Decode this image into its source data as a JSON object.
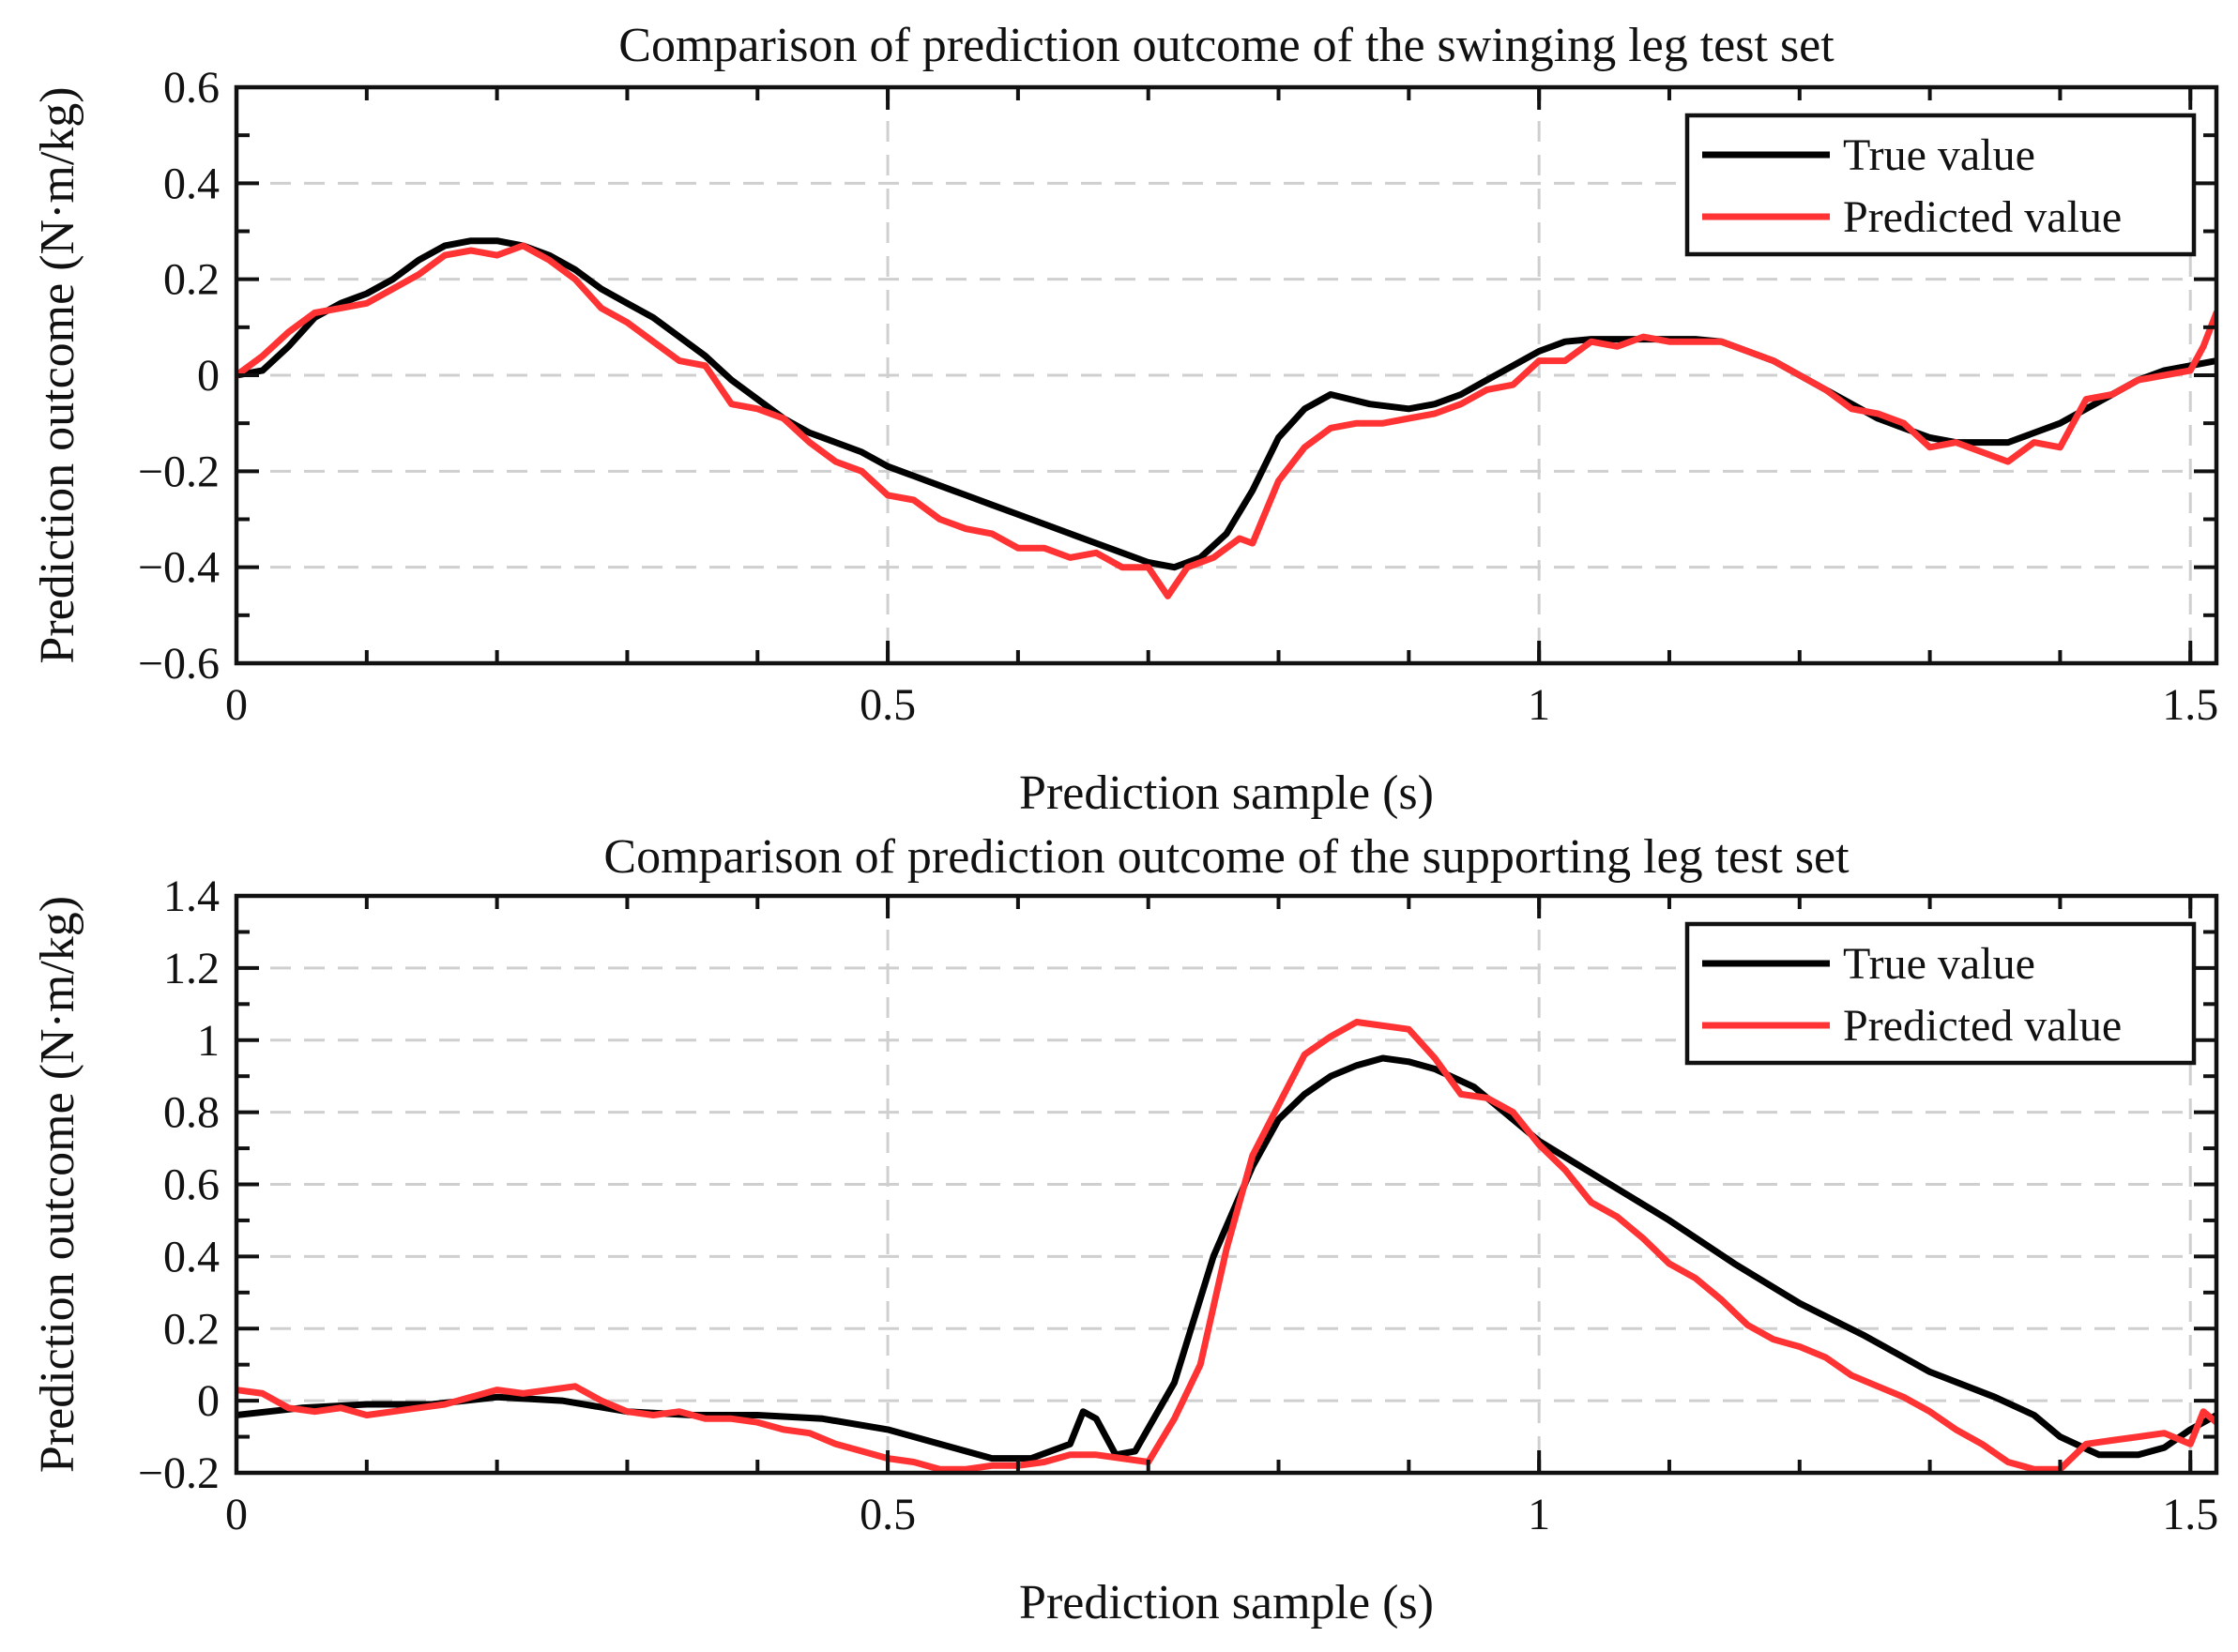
{
  "chart_data": [
    {
      "type": "line",
      "title": "Comparison of prediction outcome of the swinging leg test set",
      "xlabel": "Prediction sample (s)",
      "ylabel": "Prediction outcome (N·m/kg)",
      "xlim": [
        0,
        1.52
      ],
      "ylim": [
        -0.6,
        0.6
      ],
      "xticks": [
        0,
        0.5,
        1,
        1.5
      ],
      "xtick_labels": [
        "0",
        "0.5",
        "1",
        "1.5"
      ],
      "yticks": [
        -0.6,
        -0.4,
        -0.2,
        0,
        0.2,
        0.4,
        0.6
      ],
      "ytick_labels": [
        "−0.6",
        "−0.4",
        "−0.2",
        "0",
        "0.2",
        "0.4",
        "0.6"
      ],
      "grid": true,
      "legend_position": "top-right",
      "series": [
        {
          "name": "True value",
          "color": "#000000",
          "x": [
            0.0,
            0.02,
            0.04,
            0.06,
            0.08,
            0.1,
            0.12,
            0.14,
            0.16,
            0.18,
            0.2,
            0.22,
            0.24,
            0.26,
            0.28,
            0.3,
            0.32,
            0.34,
            0.36,
            0.38,
            0.4,
            0.42,
            0.44,
            0.46,
            0.48,
            0.5,
            0.52,
            0.54,
            0.56,
            0.58,
            0.6,
            0.62,
            0.64,
            0.66,
            0.68,
            0.7,
            0.72,
            0.74,
            0.76,
            0.78,
            0.8,
            0.82,
            0.84,
            0.855,
            0.87,
            0.9,
            0.92,
            0.94,
            0.96,
            0.98,
            1.0,
            1.02,
            1.04,
            1.06,
            1.08,
            1.1,
            1.12,
            1.14,
            1.16,
            1.18,
            1.2,
            1.22,
            1.24,
            1.26,
            1.28,
            1.3,
            1.32,
            1.34,
            1.36,
            1.38,
            1.4,
            1.42,
            1.44,
            1.46,
            1.48,
            1.5,
            1.52
          ],
          "y": [
            0.0,
            0.01,
            0.06,
            0.12,
            0.15,
            0.17,
            0.2,
            0.24,
            0.27,
            0.28,
            0.28,
            0.27,
            0.25,
            0.22,
            0.18,
            0.15,
            0.12,
            0.08,
            0.04,
            -0.01,
            -0.05,
            -0.09,
            -0.12,
            -0.14,
            -0.16,
            -0.19,
            -0.21,
            -0.23,
            -0.25,
            -0.27,
            -0.29,
            -0.31,
            -0.33,
            -0.35,
            -0.37,
            -0.39,
            -0.4,
            -0.38,
            -0.33,
            -0.24,
            -0.13,
            -0.07,
            -0.04,
            -0.05,
            -0.06,
            -0.07,
            -0.06,
            -0.04,
            -0.01,
            0.02,
            0.05,
            0.07,
            0.075,
            0.075,
            0.075,
            0.075,
            0.075,
            0.07,
            0.05,
            0.03,
            0.0,
            -0.03,
            -0.06,
            -0.09,
            -0.11,
            -0.13,
            -0.14,
            -0.14,
            -0.14,
            -0.12,
            -0.1,
            -0.07,
            -0.04,
            -0.01,
            0.01,
            0.02,
            0.03
          ]
        },
        {
          "name": "Predicted value",
          "color": "#ff3333",
          "x": [
            0.0,
            0.02,
            0.04,
            0.06,
            0.08,
            0.1,
            0.12,
            0.14,
            0.16,
            0.18,
            0.2,
            0.22,
            0.24,
            0.26,
            0.28,
            0.3,
            0.32,
            0.34,
            0.36,
            0.38,
            0.4,
            0.42,
            0.44,
            0.46,
            0.48,
            0.5,
            0.52,
            0.54,
            0.56,
            0.58,
            0.6,
            0.62,
            0.64,
            0.66,
            0.68,
            0.7,
            0.715,
            0.73,
            0.75,
            0.77,
            0.78,
            0.8,
            0.82,
            0.84,
            0.86,
            0.88,
            0.9,
            0.92,
            0.94,
            0.96,
            0.98,
            1.0,
            1.02,
            1.04,
            1.06,
            1.08,
            1.1,
            1.12,
            1.14,
            1.16,
            1.18,
            1.2,
            1.22,
            1.24,
            1.26,
            1.28,
            1.3,
            1.32,
            1.34,
            1.36,
            1.38,
            1.4,
            1.42,
            1.44,
            1.46,
            1.48,
            1.5,
            1.51,
            1.52
          ],
          "y": [
            0.0,
            0.04,
            0.09,
            0.13,
            0.14,
            0.15,
            0.18,
            0.21,
            0.25,
            0.26,
            0.25,
            0.27,
            0.24,
            0.2,
            0.14,
            0.11,
            0.07,
            0.03,
            0.02,
            -0.06,
            -0.07,
            -0.09,
            -0.14,
            -0.18,
            -0.2,
            -0.25,
            -0.26,
            -0.3,
            -0.32,
            -0.33,
            -0.36,
            -0.36,
            -0.38,
            -0.37,
            -0.4,
            -0.4,
            -0.46,
            -0.4,
            -0.38,
            -0.34,
            -0.35,
            -0.22,
            -0.15,
            -0.11,
            -0.1,
            -0.1,
            -0.09,
            -0.08,
            -0.06,
            -0.03,
            -0.02,
            0.03,
            0.03,
            0.07,
            0.06,
            0.08,
            0.07,
            0.07,
            0.07,
            0.05,
            0.03,
            0.0,
            -0.03,
            -0.07,
            -0.08,
            -0.1,
            -0.15,
            -0.14,
            -0.16,
            -0.18,
            -0.14,
            -0.15,
            -0.05,
            -0.04,
            -0.01,
            0.0,
            0.01,
            0.06,
            0.13
          ]
        }
      ]
    },
    {
      "type": "line",
      "title": "Comparison of prediction outcome of the supporting leg test set",
      "xlabel": "Prediction sample (s)",
      "ylabel": "Prediction outcome (N·m/kg)",
      "xlim": [
        0,
        1.52
      ],
      "ylim": [
        -0.2,
        1.4
      ],
      "xticks": [
        0,
        0.5,
        1,
        1.5
      ],
      "xtick_labels": [
        "0",
        "0.5",
        "1",
        "1.5"
      ],
      "yticks": [
        -0.2,
        0,
        0.2,
        0.4,
        0.6,
        0.8,
        1,
        1.2,
        1.4
      ],
      "ytick_labels": [
        "−0.2",
        "0",
        "0.2",
        "0.4",
        "0.6",
        "0.8",
        "1",
        "1.2",
        "1.4"
      ],
      "grid": true,
      "legend_position": "top-right",
      "series": [
        {
          "name": "True value",
          "color": "#000000",
          "x": [
            0.0,
            0.05,
            0.1,
            0.15,
            0.2,
            0.25,
            0.3,
            0.35,
            0.4,
            0.45,
            0.5,
            0.55,
            0.58,
            0.61,
            0.64,
            0.65,
            0.66,
            0.675,
            0.69,
            0.72,
            0.75,
            0.78,
            0.8,
            0.82,
            0.84,
            0.86,
            0.88,
            0.9,
            0.92,
            0.95,
            1.0,
            1.05,
            1.1,
            1.15,
            1.2,
            1.25,
            1.3,
            1.35,
            1.38,
            1.4,
            1.43,
            1.46,
            1.48,
            1.5,
            1.52
          ],
          "y": [
            -0.04,
            -0.02,
            -0.01,
            -0.01,
            0.01,
            0.0,
            -0.03,
            -0.04,
            -0.04,
            -0.05,
            -0.08,
            -0.13,
            -0.16,
            -0.16,
            -0.12,
            -0.03,
            -0.05,
            -0.15,
            -0.14,
            0.05,
            0.4,
            0.65,
            0.78,
            0.85,
            0.9,
            0.93,
            0.95,
            0.94,
            0.92,
            0.87,
            0.72,
            0.61,
            0.5,
            0.38,
            0.27,
            0.18,
            0.08,
            0.01,
            -0.04,
            -0.1,
            -0.15,
            -0.15,
            -0.13,
            -0.08,
            -0.04
          ]
        },
        {
          "name": "Predicted value",
          "color": "#ff3333",
          "x": [
            0.0,
            0.02,
            0.04,
            0.06,
            0.08,
            0.1,
            0.12,
            0.14,
            0.16,
            0.18,
            0.2,
            0.22,
            0.24,
            0.26,
            0.28,
            0.3,
            0.32,
            0.34,
            0.36,
            0.38,
            0.4,
            0.42,
            0.44,
            0.46,
            0.48,
            0.5,
            0.52,
            0.54,
            0.56,
            0.58,
            0.6,
            0.62,
            0.64,
            0.66,
            0.68,
            0.7,
            0.72,
            0.74,
            0.76,
            0.78,
            0.8,
            0.82,
            0.84,
            0.86,
            0.88,
            0.9,
            0.92,
            0.94,
            0.96,
            0.98,
            1.0,
            1.02,
            1.04,
            1.06,
            1.08,
            1.1,
            1.12,
            1.14,
            1.16,
            1.18,
            1.2,
            1.22,
            1.24,
            1.26,
            1.28,
            1.3,
            1.32,
            1.34,
            1.36,
            1.38,
            1.4,
            1.42,
            1.44,
            1.46,
            1.48,
            1.5,
            1.51,
            1.52
          ],
          "y": [
            0.03,
            0.02,
            -0.02,
            -0.03,
            -0.02,
            -0.04,
            -0.03,
            -0.02,
            -0.01,
            0.01,
            0.03,
            0.02,
            0.03,
            0.04,
            0.0,
            -0.03,
            -0.04,
            -0.03,
            -0.05,
            -0.05,
            -0.06,
            -0.08,
            -0.09,
            -0.12,
            -0.14,
            -0.16,
            -0.17,
            -0.19,
            -0.19,
            -0.18,
            -0.18,
            -0.17,
            -0.15,
            -0.15,
            -0.16,
            -0.17,
            -0.05,
            0.1,
            0.42,
            0.68,
            0.82,
            0.96,
            1.01,
            1.05,
            1.04,
            1.03,
            0.95,
            0.85,
            0.84,
            0.8,
            0.71,
            0.64,
            0.55,
            0.51,
            0.45,
            0.38,
            0.34,
            0.28,
            0.21,
            0.17,
            0.15,
            0.12,
            0.07,
            0.04,
            0.01,
            -0.03,
            -0.08,
            -0.12,
            -0.17,
            -0.19,
            -0.19,
            -0.12,
            -0.11,
            -0.1,
            -0.09,
            -0.12,
            -0.03,
            -0.06
          ]
        }
      ]
    }
  ]
}
